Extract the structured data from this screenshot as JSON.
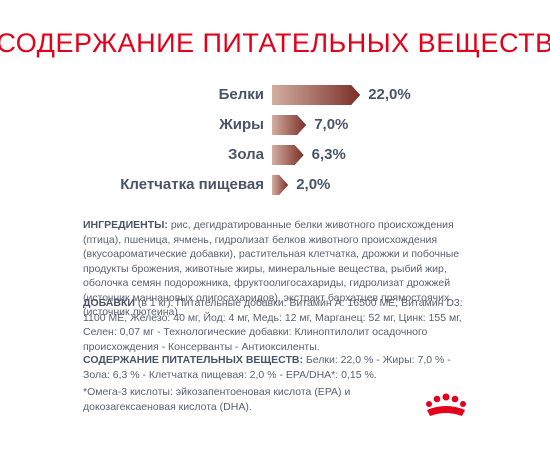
{
  "chart_data": {
    "type": "bar",
    "title": "СОДЕРЖАНИЕ ПИТАТЕЛЬНЫХ ВЕЩЕСТВ",
    "categories": [
      "Белки",
      "Жиры",
      "Зола",
      "Клетчатка пищевая"
    ],
    "values": [
      22.0,
      7.0,
      6.3,
      2.0
    ],
    "value_labels": [
      "22,0%",
      "7,0%",
      "6,3%",
      "2,0%"
    ],
    "color": "#7a2f27"
  },
  "ingredients": {
    "label": "ИНГРЕДИЕНТЫ:",
    "text": "рис, дегидратированные белки животного происхождения (птица), пшеница, ячмень, гидролизат белков животного происхождения (вкусоароматические добавки), растительная клетчатка, дрожжи и побочные продукты брожения, животные жиры, минеральные вещества, рыбий жир, оболочка семян подорожника, фруктоолигосахариды, гидролизат дрожжей (источник маннановых олигосахаридов), экстракт бархатцев прямостоячих (источник лютеина)."
  },
  "additives": {
    "label": "ДОБАВКИ",
    "unit": "(в 1 кг):",
    "text": "Питательные добавки: Витамин A: 16500 МЕ, Витамин D3: 1100 МЕ, Железо: 40 мг, Йод: 4 мг, Медь: 12 мг, Марганец: 52 мг, Цинк: 155 мг, Селен: 0,07 мг - Технологические добавки: Клиноптилолит осадочного происхождения - Консерванты - Антиоксиленты."
  },
  "nutrition": {
    "label": "СОДЕРЖАНИЕ ПИТАТЕЛЬНЫХ ВЕЩЕСТВ:",
    "text": "Белки: 22,0 % - Жиры: 7,0 % - Зола: 6,3 % - Клетчатка пищевая: 2,0 % - EPA/DHA*: 0,15 %."
  },
  "footnote": "*Омега-3 кислоты: эйкозапентоеновая кислота (EPA) и докозагексаеновая кислота (DHA)."
}
